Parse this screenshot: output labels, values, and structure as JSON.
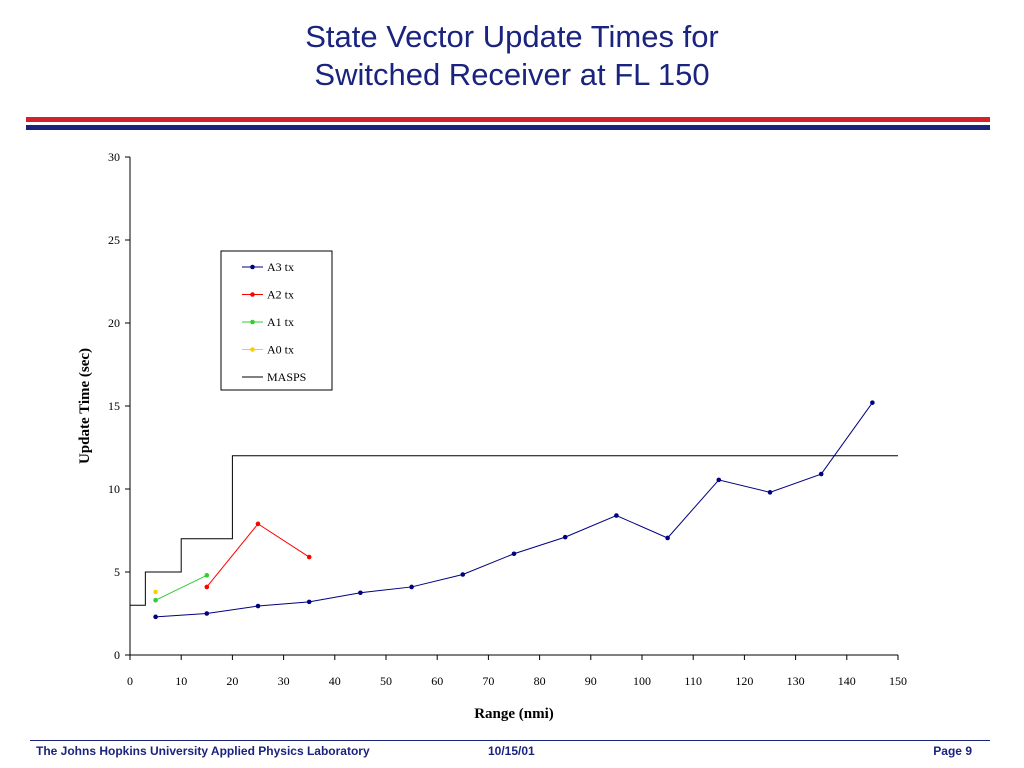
{
  "slide": {
    "title_line1": "State Vector Update Times for",
    "title_line2": "Switched Receiver at FL 150"
  },
  "footer": {
    "organization": "The Johns Hopkins University Applied Physics Laboratory",
    "date": "10/15/01",
    "page": "Page 9"
  },
  "colors": {
    "title": "#1a237e",
    "rule_red": "#d3222a",
    "rule_navy": "#1a237e"
  },
  "chart_data": {
    "type": "line",
    "xlabel": "Range (nmi)",
    "ylabel": "Update Time (sec)",
    "xlim": [
      0,
      150
    ],
    "ylim": [
      0,
      30
    ],
    "xticks": [
      0,
      10,
      20,
      30,
      40,
      50,
      60,
      70,
      80,
      90,
      100,
      110,
      120,
      130,
      140,
      150
    ],
    "yticks": [
      0,
      5,
      10,
      15,
      20,
      25,
      30
    ],
    "grid": false,
    "legend_position": "upper-center",
    "series": [
      {
        "name": "A3 tx",
        "color": "#000080",
        "marker": "dot",
        "x": [
          5,
          15,
          25,
          35,
          45,
          55,
          65,
          75,
          85,
          95,
          105,
          115,
          125,
          135,
          145
        ],
        "y": [
          2.3,
          2.5,
          2.95,
          3.2,
          3.75,
          4.1,
          4.85,
          6.1,
          7.1,
          8.4,
          7.05,
          10.55,
          9.8,
          10.9,
          15.2
        ]
      },
      {
        "name": "A2 tx",
        "color": "#ff0000",
        "marker": "dot",
        "x": [
          15,
          25,
          35
        ],
        "y": [
          4.1,
          7.9,
          5.9
        ]
      },
      {
        "name": "A1 tx",
        "color": "#33cc33",
        "marker": "dot",
        "x": [
          5,
          15
        ],
        "y": [
          3.3,
          4.8
        ]
      },
      {
        "name": "A0 tx",
        "color": "#ffcc00",
        "marker": "dot",
        "x": [
          5
        ],
        "y": [
          3.8
        ]
      },
      {
        "name": "MASPS",
        "color": "#000000",
        "marker": "none",
        "step": true,
        "x": [
          0,
          3,
          3,
          10,
          10,
          20,
          20,
          150
        ],
        "y": [
          3,
          3,
          5,
          5,
          7,
          7,
          12,
          12
        ]
      }
    ]
  }
}
